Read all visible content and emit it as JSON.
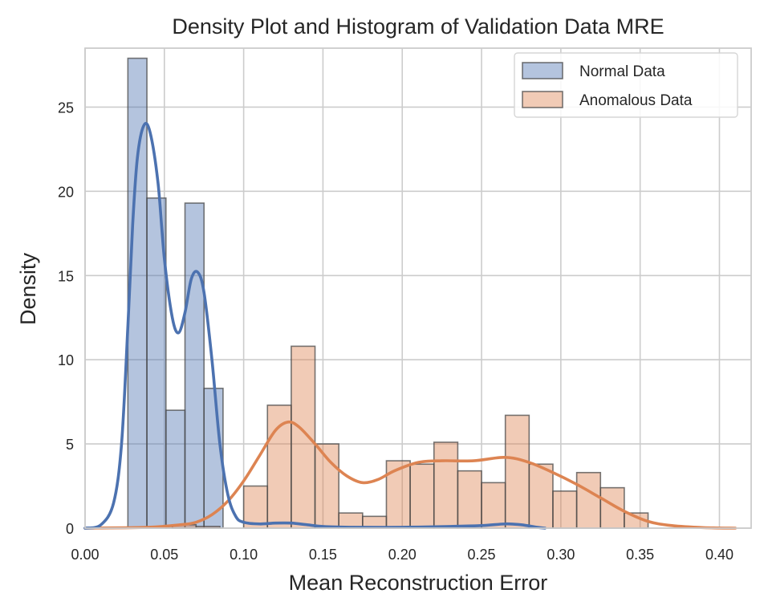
{
  "chart_data": {
    "type": "histogram",
    "title": "Density Plot and Histogram of Validation Data MRE",
    "xlabel": "Mean Reconstruction Error",
    "ylabel": "Density",
    "xlim": [
      0.0,
      0.42
    ],
    "ylim": [
      0,
      28.5
    ],
    "xticks": [
      "0.00",
      "0.05",
      "0.10",
      "0.15",
      "0.20",
      "0.25",
      "0.30",
      "0.35",
      "0.40"
    ],
    "xtick_values": [
      0.0,
      0.05,
      0.1,
      0.15,
      0.2,
      0.25,
      0.3,
      0.35,
      0.4
    ],
    "yticks": [
      "0",
      "5",
      "10",
      "15",
      "20",
      "25"
    ],
    "ytick_values": [
      0,
      5,
      10,
      15,
      20,
      25
    ],
    "grid": true,
    "legend_position": "top-right",
    "series": [
      {
        "name": "Normal Data",
        "color": "#4c72b0",
        "kde_color": "#4c72b0",
        "bin_width": 0.012,
        "bins": [
          {
            "x": 0.027,
            "y": 27.9
          },
          {
            "x": 0.039,
            "y": 19.6
          },
          {
            "x": 0.051,
            "y": 7.0
          },
          {
            "x": 0.063,
            "y": 19.3
          },
          {
            "x": 0.075,
            "y": 8.3
          }
        ],
        "kde": [
          [
            0.0,
            0.0
          ],
          [
            0.01,
            0.2
          ],
          [
            0.018,
            1.5
          ],
          [
            0.023,
            5.0
          ],
          [
            0.027,
            12.0
          ],
          [
            0.03,
            18.0
          ],
          [
            0.033,
            22.0
          ],
          [
            0.037,
            23.9
          ],
          [
            0.041,
            23.5
          ],
          [
            0.046,
            20.5
          ],
          [
            0.05,
            16.0
          ],
          [
            0.055,
            12.5
          ],
          [
            0.059,
            11.6
          ],
          [
            0.063,
            12.8
          ],
          [
            0.067,
            14.8
          ],
          [
            0.071,
            15.2
          ],
          [
            0.075,
            14.0
          ],
          [
            0.08,
            10.0
          ],
          [
            0.085,
            5.0
          ],
          [
            0.09,
            2.0
          ],
          [
            0.095,
            0.7
          ],
          [
            0.1,
            0.35
          ],
          [
            0.11,
            0.25
          ],
          [
            0.12,
            0.3
          ],
          [
            0.13,
            0.3
          ],
          [
            0.14,
            0.2
          ],
          [
            0.15,
            0.1
          ],
          [
            0.17,
            0.05
          ],
          [
            0.2,
            0.05
          ],
          [
            0.23,
            0.1
          ],
          [
            0.25,
            0.15
          ],
          [
            0.265,
            0.25
          ],
          [
            0.275,
            0.2
          ],
          [
            0.285,
            0.05
          ],
          [
            0.29,
            0.0
          ]
        ]
      },
      {
        "name": "Anomalous Data",
        "color": "#dd8452",
        "kde_color": "#dd8452",
        "bin_width": 0.015,
        "bins": [
          {
            "x": 0.055,
            "y": 0.2
          },
          {
            "x": 0.07,
            "y": 0.1
          },
          {
            "x": 0.085,
            "y": 0.0
          },
          {
            "x": 0.1,
            "y": 2.5
          },
          {
            "x": 0.115,
            "y": 7.3
          },
          {
            "x": 0.13,
            "y": 10.8
          },
          {
            "x": 0.145,
            "y": 5.0
          },
          {
            "x": 0.16,
            "y": 0.9
          },
          {
            "x": 0.175,
            "y": 0.7
          },
          {
            "x": 0.19,
            "y": 4.0
          },
          {
            "x": 0.205,
            "y": 3.8
          },
          {
            "x": 0.22,
            "y": 5.1
          },
          {
            "x": 0.235,
            "y": 3.4
          },
          {
            "x": 0.25,
            "y": 2.7
          },
          {
            "x": 0.265,
            "y": 6.7
          },
          {
            "x": 0.28,
            "y": 3.8
          },
          {
            "x": 0.295,
            "y": 2.2
          },
          {
            "x": 0.31,
            "y": 3.3
          },
          {
            "x": 0.325,
            "y": 2.4
          },
          {
            "x": 0.34,
            "y": 0.9
          }
        ],
        "kde": [
          [
            0.0,
            0.0
          ],
          [
            0.04,
            0.05
          ],
          [
            0.06,
            0.2
          ],
          [
            0.07,
            0.35
          ],
          [
            0.08,
            0.8
          ],
          [
            0.09,
            1.6
          ],
          [
            0.1,
            2.8
          ],
          [
            0.11,
            4.3
          ],
          [
            0.12,
            5.8
          ],
          [
            0.128,
            6.3
          ],
          [
            0.135,
            6.0
          ],
          [
            0.145,
            5.0
          ],
          [
            0.155,
            3.9
          ],
          [
            0.165,
            3.1
          ],
          [
            0.175,
            2.7
          ],
          [
            0.185,
            2.9
          ],
          [
            0.195,
            3.4
          ],
          [
            0.21,
            3.9
          ],
          [
            0.225,
            4.0
          ],
          [
            0.245,
            4.0
          ],
          [
            0.265,
            4.2
          ],
          [
            0.28,
            3.9
          ],
          [
            0.295,
            3.3
          ],
          [
            0.31,
            2.6
          ],
          [
            0.325,
            1.8
          ],
          [
            0.34,
            1.0
          ],
          [
            0.355,
            0.4
          ],
          [
            0.37,
            0.15
          ],
          [
            0.39,
            0.03
          ],
          [
            0.41,
            0.0
          ]
        ]
      }
    ]
  }
}
